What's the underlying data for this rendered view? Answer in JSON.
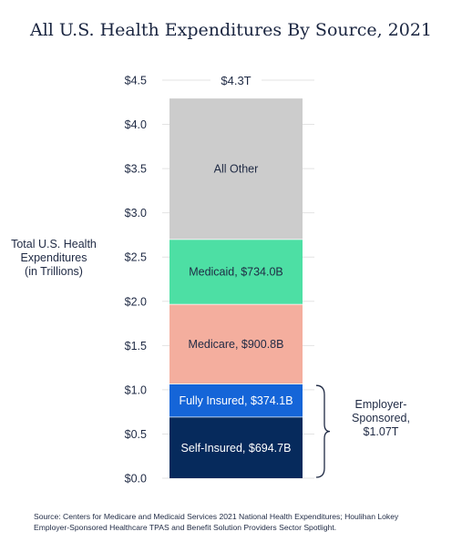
{
  "chart_data": {
    "type": "bar",
    "stacked": true,
    "title": "All U.S. Health Expenditures By Source, 2021",
    "ylabel": [
      "Total U.S. Health",
      "Expenditures",
      "(in Trillions)"
    ],
    "ylim": [
      0,
      4.5
    ],
    "yticks": [
      0.0,
      0.5,
      1.0,
      1.5,
      2.0,
      2.5,
      3.0,
      3.5,
      4.0,
      4.5
    ],
    "ytick_labels": [
      "$0.0",
      "$0.5",
      "$1.0",
      "$1.5",
      "$2.0",
      "$2.5",
      "$3.0",
      "$3.5",
      "$4.0",
      "$4.5"
    ],
    "grid": true,
    "total": 4.3,
    "total_label": "$4.3T",
    "segments": [
      {
        "name": "Self-Insured",
        "value": 0.6947,
        "label": "Self-Insured, $694.7B",
        "color": "#062a5c",
        "text_color": "#ffffff"
      },
      {
        "name": "Fully Insured",
        "value": 0.3741,
        "label": "Fully Insured, $374.1B",
        "color": "#1565d8",
        "text_color": "#ffffff"
      },
      {
        "name": "Medicare",
        "value": 0.9008,
        "label": "Medicare, $900.8B",
        "color": "#f4ae9e",
        "text_color": "#1f2a44"
      },
      {
        "name": "Medicaid",
        "value": 0.734,
        "label": "Medicaid, $734.0B",
        "color": "#4ddfa4",
        "text_color": "#1f2a44"
      },
      {
        "name": "All Other",
        "value": 1.5964,
        "label": "All Other",
        "color": "#cccccc",
        "text_color": "#1f2a44"
      }
    ],
    "annotation": {
      "lines": [
        "Employer-",
        "Sponsored,",
        "$1.07T"
      ],
      "range": [
        0,
        1.0688
      ]
    }
  },
  "source": "Source: Centers for Medicare and Medicaid Services 2021 National Health Expenditures; Houlihan Lokey Employer-Sponsored Healthcare TPAS and Benefit Solution Providers Sector Spotlight."
}
